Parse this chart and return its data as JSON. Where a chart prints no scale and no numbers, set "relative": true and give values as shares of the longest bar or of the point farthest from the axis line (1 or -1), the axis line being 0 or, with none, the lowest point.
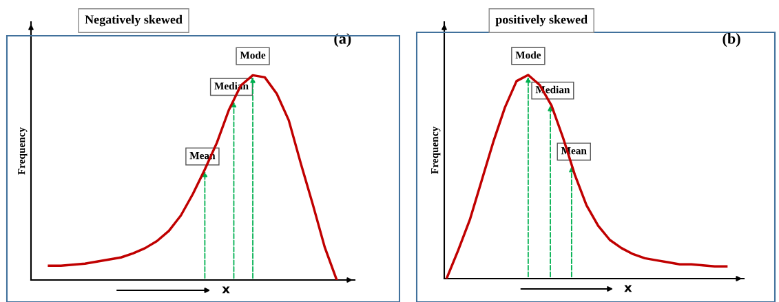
{
  "chart_data": [
    {
      "type": "line",
      "title": "Negatively skewed",
      "xlabel": "x",
      "ylabel": "Frequency",
      "relative": true,
      "categories": [
        null,
        null,
        null,
        null,
        null,
        null,
        null,
        null,
        null,
        null,
        null,
        null,
        null,
        null,
        null,
        null,
        null,
        null,
        null,
        null,
        null,
        null,
        null,
        null,
        null
      ],
      "series": [
        {
          "color": "#c00000",
          "values": [
            0.07,
            0.07,
            0.075,
            0.08,
            0.09,
            0.1,
            0.11,
            0.13,
            0.155,
            0.19,
            0.24,
            0.315,
            0.42,
            0.54,
            0.67,
            0.83,
            0.95,
            1.0,
            0.99,
            0.91,
            0.78,
            0.57,
            0.37,
            0.16,
            0
          ]
        }
      ],
      "annotations": [
        "(a)",
        {
          "text": "Mean",
          "y": 0.54
        },
        {
          "text": "Median",
          "y": 0.88
        },
        {
          "text": "Mode",
          "y": 1.0
        }
      ],
      "marker": "none",
      "line_style": "solid",
      "grid": false,
      "legend": false
    },
    {
      "type": "line",
      "title": "positively skewed",
      "xlabel": "x",
      "ylabel": "Frequency",
      "relative": true,
      "categories": [
        null,
        null,
        null,
        null,
        null,
        null,
        null,
        null,
        null,
        null,
        null,
        null,
        null,
        null,
        null,
        null,
        null,
        null,
        null,
        null,
        null,
        null,
        null,
        null,
        null
      ],
      "series": [
        {
          "color": "#c00000",
          "values": [
            0,
            0.14,
            0.29,
            0.48,
            0.67,
            0.84,
            0.97,
            1.0,
            0.95,
            0.85,
            0.69,
            0.51,
            0.36,
            0.26,
            0.19,
            0.15,
            0.12,
            0.1,
            0.09,
            0.08,
            0.07,
            0.07,
            0.065,
            0.06,
            0.06
          ]
        }
      ],
      "annotations": [
        "(b)",
        {
          "text": "Mode",
          "y": 1.0
        },
        {
          "text": "Median",
          "y": 0.86
        },
        {
          "text": "Mean",
          "y": 0.56
        }
      ],
      "marker": "none",
      "line_style": "solid",
      "grid": false,
      "legend": false
    }
  ]
}
